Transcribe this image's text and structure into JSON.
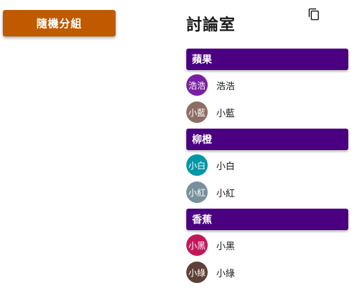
{
  "shuffle_button": {
    "label": "隨機分組",
    "color": "#c05a00"
  },
  "room": {
    "title": "討論室",
    "copy_icon": "copy-icon"
  },
  "header_color": "#4b0082",
  "groups": [
    {
      "name": "蘋果",
      "members": [
        {
          "avatar_text": "浩浩",
          "name": "浩浩",
          "avatar_color": "#7b1fa2"
        },
        {
          "avatar_text": "小藍",
          "name": "小藍",
          "avatar_color": "#8d6e63"
        }
      ]
    },
    {
      "name": "柳橙",
      "members": [
        {
          "avatar_text": "小白",
          "name": "小白",
          "avatar_color": "#0097a7"
        },
        {
          "avatar_text": "小紅",
          "name": "小紅",
          "avatar_color": "#78909c"
        }
      ]
    },
    {
      "name": "香蕉",
      "members": [
        {
          "avatar_text": "小黑",
          "name": "小黑",
          "avatar_color": "#c2185b"
        },
        {
          "avatar_text": "小綠",
          "name": "小綠",
          "avatar_color": "#5d4037"
        }
      ]
    }
  ]
}
